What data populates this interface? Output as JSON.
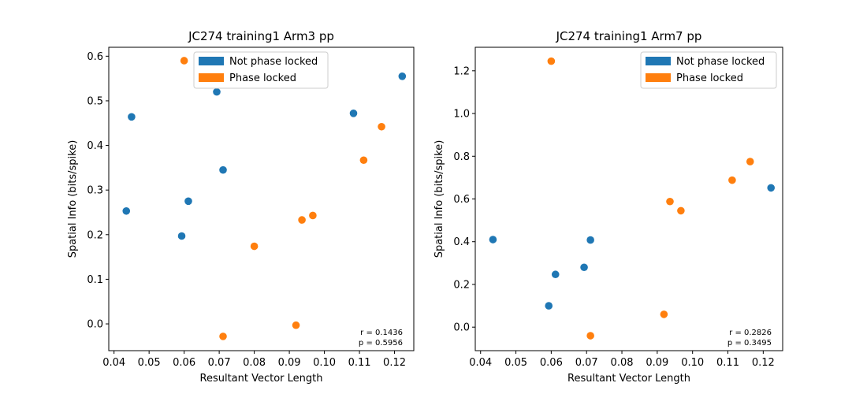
{
  "chart_data": [
    {
      "type": "scatter",
      "title": "JC274 training1 Arm3 pp",
      "xlabel": "Resultant Vector Length",
      "ylabel": "Spatial Info (bits/spike)",
      "xlim": [
        0.0385,
        0.1255
      ],
      "ylim": [
        -0.06,
        0.62
      ],
      "xticks": [
        0.04,
        0.05,
        0.06,
        0.07,
        0.08,
        0.09,
        0.1,
        0.11,
        0.12
      ],
      "xtick_labels": [
        "0.04",
        "0.05",
        "0.06",
        "0.07",
        "0.08",
        "0.09",
        "0.10",
        "0.11",
        "0.12"
      ],
      "yticks": [
        0.0,
        0.1,
        0.2,
        0.3,
        0.4,
        0.5,
        0.6
      ],
      "ytick_labels": [
        "0.0",
        "0.1",
        "0.2",
        "0.3",
        "0.4",
        "0.5",
        "0.6"
      ],
      "legend_position": "top-center",
      "series": [
        {
          "name": "Not phase locked",
          "color": "#1f77b4",
          "points": [
            {
              "x": 0.0435,
              "y": 0.253
            },
            {
              "x": 0.045,
              "y": 0.464
            },
            {
              "x": 0.0593,
              "y": 0.197
            },
            {
              "x": 0.0612,
              "y": 0.275
            },
            {
              "x": 0.0693,
              "y": 0.52
            },
            {
              "x": 0.0711,
              "y": 0.345
            },
            {
              "x": 0.1083,
              "y": 0.472
            },
            {
              "x": 0.1222,
              "y": 0.555
            }
          ]
        },
        {
          "name": "Phase locked",
          "color": "#ff7f0e",
          "points": [
            {
              "x": 0.06,
              "y": 0.59
            },
            {
              "x": 0.0711,
              "y": -0.028
            },
            {
              "x": 0.08,
              "y": 0.174
            },
            {
              "x": 0.0919,
              "y": -0.003
            },
            {
              "x": 0.0936,
              "y": 0.233
            },
            {
              "x": 0.0967,
              "y": 0.243
            },
            {
              "x": 0.1112,
              "y": 0.367
            },
            {
              "x": 0.1163,
              "y": 0.442
            }
          ]
        }
      ],
      "annotation": [
        "r = 0.1436",
        "p = 0.5956"
      ]
    },
    {
      "type": "scatter",
      "title": "JC274 training1 Arm7 pp",
      "xlabel": "Resultant Vector Length",
      "ylabel": "Spatial Info (bits/spike)",
      "xlim": [
        0.0385,
        0.1255
      ],
      "ylim": [
        -0.11,
        1.31
      ],
      "xticks": [
        0.04,
        0.05,
        0.06,
        0.07,
        0.08,
        0.09,
        0.1,
        0.11,
        0.12
      ],
      "xtick_labels": [
        "0.04",
        "0.05",
        "0.06",
        "0.07",
        "0.08",
        "0.09",
        "0.10",
        "0.11",
        "0.12"
      ],
      "yticks": [
        0.0,
        0.2,
        0.4,
        0.6,
        0.8,
        1.0,
        1.2
      ],
      "ytick_labels": [
        "0.0",
        "0.2",
        "0.4",
        "0.6",
        "0.8",
        "1.0",
        "1.2"
      ],
      "legend_position": "top-right",
      "series": [
        {
          "name": "Not phase locked",
          "color": "#1f77b4",
          "points": [
            {
              "x": 0.0435,
              "y": 0.41
            },
            {
              "x": 0.0593,
              "y": 0.1
            },
            {
              "x": 0.0612,
              "y": 0.247
            },
            {
              "x": 0.0693,
              "y": 0.28
            },
            {
              "x": 0.0711,
              "y": 0.408
            },
            {
              "x": 0.1222,
              "y": 0.652
            }
          ]
        },
        {
          "name": "Phase locked",
          "color": "#ff7f0e",
          "points": [
            {
              "x": 0.06,
              "y": 1.245
            },
            {
              "x": 0.0711,
              "y": -0.04
            },
            {
              "x": 0.0919,
              "y": 0.06
            },
            {
              "x": 0.0936,
              "y": 0.588
            },
            {
              "x": 0.0967,
              "y": 0.545
            },
            {
              "x": 0.1112,
              "y": 0.688
            },
            {
              "x": 0.1163,
              "y": 0.775
            }
          ]
        }
      ],
      "annotation": [
        "r = 0.2826",
        "p = 0.3495"
      ]
    }
  ]
}
